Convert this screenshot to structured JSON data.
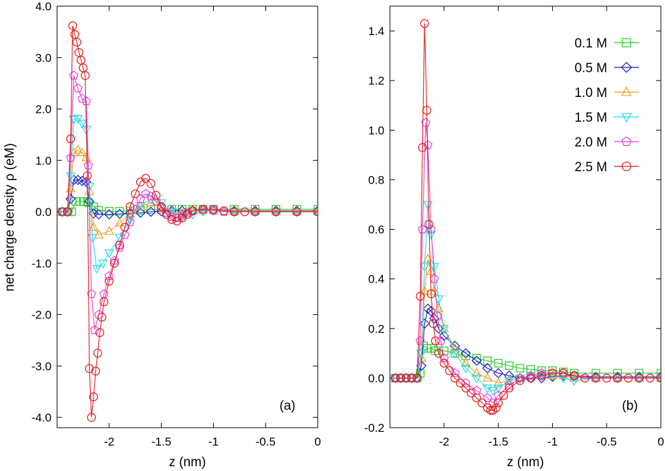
{
  "figure": {
    "ylabel": "net charge density ρ (eM)",
    "legend": {
      "placement": "top-right of panel (b)",
      "entries": [
        {
          "label": "0.1 M",
          "color": "#22cc22",
          "marker": "square"
        },
        {
          "label": "0.5 M",
          "color": "#1a1acc",
          "marker": "diamond"
        },
        {
          "label": "1.0 M",
          "color": "#f0a020",
          "marker": "triangle-up"
        },
        {
          "label": "1.5 M",
          "color": "#22dde6",
          "marker": "triangle-down"
        },
        {
          "label": "2.0 M",
          "color": "#e040e0",
          "marker": "pentagon"
        },
        {
          "label": "2.5 M",
          "color": "#e61a1a",
          "marker": "circle"
        }
      ]
    }
  },
  "chart_data": [
    {
      "type": "line",
      "panel_label": "(a)",
      "xlabel": "z (nm)",
      "ylabel": "net charge density ρ (eM)",
      "xlim": [
        -2.5,
        0
      ],
      "ylim": [
        -4.2,
        4.0
      ],
      "xticks": [
        -2,
        -1.5,
        -1,
        -0.5,
        0
      ],
      "xtick_labels": [
        "-2",
        "-1.5",
        "-1",
        "-0.5",
        "0"
      ],
      "yticks": [
        4,
        3,
        2,
        1,
        0,
        -1,
        -2,
        -3,
        -4
      ],
      "ytick_labels": [
        "4.0",
        "3.0",
        "2.0",
        "1.0",
        "0.0",
        "-1.0",
        "-2.0",
        "-3.0",
        "-4.0"
      ],
      "series": [
        {
          "name": "0.1 M",
          "x": [
            -2.45,
            -2.4,
            -2.36,
            -2.32,
            -2.28,
            -2.24,
            -2.2,
            -2.15,
            -2.1,
            -2.0,
            -1.9,
            -1.8,
            -1.7,
            -1.6,
            -1.5,
            -1.4,
            -1.3,
            -1.2,
            -1.1,
            -1.0,
            -0.8,
            -0.6,
            -0.4,
            -0.2,
            0.0
          ],
          "y": [
            0,
            0,
            0,
            0.2,
            0.2,
            0.2,
            0.18,
            0.1,
            0.03,
            0.01,
            0.01,
            0.02,
            0.03,
            0.04,
            0.05,
            0.05,
            0.05,
            0.05,
            0.05,
            0.05,
            0.05,
            0.05,
            0.05,
            0.05,
            0.05
          ]
        },
        {
          "name": "0.5 M",
          "x": [
            -2.45,
            -2.4,
            -2.37,
            -2.34,
            -2.3,
            -2.26,
            -2.22,
            -2.19,
            -2.15,
            -2.1,
            -2.0,
            -1.9,
            -1.8,
            -1.7,
            -1.6,
            -1.5,
            -1.4,
            -1.3,
            -1.2,
            -1.1,
            -1.0,
            -0.8,
            -0.6,
            -0.4,
            -0.2,
            0.0
          ],
          "y": [
            0,
            0,
            0.25,
            0.62,
            0.62,
            0.6,
            0.58,
            0.2,
            -0.03,
            -0.05,
            -0.05,
            -0.04,
            -0.03,
            -0.02,
            0,
            0.01,
            0.02,
            0.02,
            0.02,
            0.02,
            0.03,
            0.02,
            0.02,
            0.02,
            0.02,
            0.02
          ]
        },
        {
          "name": "1.0 M",
          "x": [
            -2.45,
            -2.4,
            -2.37,
            -2.34,
            -2.3,
            -2.26,
            -2.22,
            -2.19,
            -2.15,
            -2.1,
            -2.0,
            -1.9,
            -1.8,
            -1.7,
            -1.6,
            -1.5,
            -1.4,
            -1.3,
            -1.2,
            -1.1,
            -1.0,
            -0.8,
            -0.6,
            -0.4,
            -0.2,
            0.0
          ],
          "y": [
            0,
            0,
            0.45,
            1.15,
            1.2,
            1.15,
            1.05,
            0.4,
            -0.3,
            -0.45,
            -0.38,
            -0.22,
            -0.05,
            0.1,
            0.18,
            0.1,
            0,
            -0.03,
            0.01,
            0.03,
            0.03,
            0.01,
            0.01,
            0.01,
            0.01,
            0.01
          ]
        },
        {
          "name": "1.5 M",
          "x": [
            -2.45,
            -2.4,
            -2.37,
            -2.34,
            -2.3,
            -2.26,
            -2.22,
            -2.19,
            -2.16,
            -2.12,
            -2.06,
            -2.0,
            -1.9,
            -1.8,
            -1.7,
            -1.6,
            -1.5,
            -1.4,
            -1.3,
            -1.2,
            -1.1,
            -1.0,
            -0.8,
            -0.6,
            -0.4,
            -0.2,
            0.0
          ],
          "y": [
            0,
            0,
            0.7,
            1.8,
            1.82,
            1.72,
            1.6,
            0.5,
            -0.5,
            -1.1,
            -1.0,
            -0.8,
            -0.5,
            -0.15,
            0.12,
            0.25,
            0.18,
            0,
            -0.1,
            -0.05,
            0.01,
            0.02,
            0,
            0,
            0,
            0,
            0
          ]
        },
        {
          "name": "2.0 M",
          "x": [
            -2.45,
            -2.4,
            -2.37,
            -2.34,
            -2.3,
            -2.26,
            -2.22,
            -2.2,
            -2.17,
            -2.14,
            -2.1,
            -2.05,
            -2.0,
            -1.95,
            -1.9,
            -1.85,
            -1.8,
            -1.75,
            -1.7,
            -1.65,
            -1.6,
            -1.55,
            -1.5,
            -1.45,
            -1.4,
            -1.35,
            -1.3,
            -1.25,
            -1.2,
            -1.1,
            -1.0,
            -0.9,
            -0.8,
            -0.6,
            -0.4,
            -0.2,
            0.0
          ],
          "y": [
            0,
            0,
            1.05,
            2.65,
            2.4,
            2.2,
            2.15,
            0.9,
            -1.6,
            -2.3,
            -2.0,
            -1.6,
            -1.25,
            -0.95,
            -0.7,
            -0.45,
            -0.2,
            0.05,
            0.25,
            0.35,
            0.3,
            0.2,
            0.08,
            -0.02,
            -0.1,
            -0.12,
            -0.08,
            -0.02,
            0.02,
            0.04,
            0.02,
            0,
            0,
            0,
            0,
            0,
            0
          ]
        },
        {
          "name": "2.5 M",
          "x": [
            -2.45,
            -2.4,
            -2.37,
            -2.35,
            -2.33,
            -2.31,
            -2.29,
            -2.27,
            -2.25,
            -2.23,
            -2.21,
            -2.19,
            -2.17,
            -2.15,
            -2.13,
            -2.11,
            -2.09,
            -2.07,
            -2.05,
            -2.0,
            -1.95,
            -1.9,
            -1.85,
            -1.8,
            -1.75,
            -1.7,
            -1.65,
            -1.6,
            -1.55,
            -1.5,
            -1.45,
            -1.4,
            -1.35,
            -1.3,
            -1.25,
            -1.2,
            -1.1,
            -1.0,
            -0.9,
            -0.8,
            -0.7,
            -0.6,
            -0.4,
            -0.2,
            0.0
          ],
          "y": [
            0,
            0,
            1.42,
            3.62,
            3.45,
            3.3,
            3.1,
            2.95,
            2.8,
            2.65,
            0.7,
            -3.05,
            -4.0,
            -3.6,
            -3.1,
            -2.75,
            -2.35,
            -2.05,
            -1.75,
            -1.35,
            -1.0,
            -0.65,
            -0.3,
            0.1,
            0.35,
            0.58,
            0.65,
            0.55,
            0.32,
            0.1,
            -0.05,
            -0.15,
            -0.18,
            -0.12,
            -0.05,
            0.02,
            0.05,
            0.05,
            0.02,
            0,
            0,
            0,
            0,
            0,
            0
          ]
        }
      ]
    },
    {
      "type": "line",
      "panel_label": "(b)",
      "xlabel": "z (nm)",
      "ylabel": "",
      "xlim": [
        -2.5,
        0
      ],
      "ylim": [
        -0.2,
        1.5
      ],
      "xticks": [
        -2,
        -1.5,
        -1,
        -0.5,
        0
      ],
      "xtick_labels": [
        "-2",
        "-1.5",
        "-1",
        "-0.5",
        "0"
      ],
      "yticks": [
        1.4,
        1.2,
        1.0,
        0.8,
        0.6,
        0.4,
        0.2,
        0.0,
        -0.2
      ],
      "ytick_labels": [
        "1.4",
        "1.2",
        "1.0",
        "0.8",
        "0.6",
        "0.4",
        "0.2",
        "0.0",
        "-0.2"
      ],
      "series": [
        {
          "name": "0.1 M",
          "x": [
            -2.45,
            -2.4,
            -2.35,
            -2.3,
            -2.25,
            -2.22,
            -2.19,
            -2.16,
            -2.12,
            -2.08,
            -2.0,
            -1.9,
            -1.8,
            -1.7,
            -1.6,
            -1.5,
            -1.4,
            -1.3,
            -1.2,
            -1.1,
            -1.0,
            -0.9,
            -0.8,
            -0.6,
            -0.4,
            -0.2,
            0.0
          ],
          "y": [
            0,
            0,
            0,
            0,
            0,
            0.02,
            0.13,
            0.12,
            0.12,
            0.11,
            0.11,
            0.1,
            0.09,
            0.08,
            0.07,
            0.06,
            0.05,
            0.04,
            0.035,
            0.03,
            0.03,
            0.025,
            0.02,
            0.02,
            0.02,
            0.02,
            0.02
          ]
        },
        {
          "name": "0.5 M",
          "x": [
            -2.45,
            -2.4,
            -2.35,
            -2.3,
            -2.25,
            -2.21,
            -2.18,
            -2.15,
            -2.12,
            -2.09,
            -2.05,
            -2.0,
            -1.9,
            -1.8,
            -1.7,
            -1.6,
            -1.5,
            -1.4,
            -1.3,
            -1.2,
            -1.1,
            -1.0,
            -0.9,
            -0.8,
            -0.6,
            -0.4,
            -0.2,
            0.0
          ],
          "y": [
            0,
            0,
            0,
            0,
            0,
            0.05,
            0.22,
            0.28,
            0.27,
            0.24,
            0.2,
            0.17,
            0.13,
            0.1,
            0.07,
            0.04,
            0.02,
            0.01,
            0.0,
            0.0,
            0.0,
            0.005,
            0.01,
            0.01,
            0.005,
            0.005,
            0.005,
            0.005
          ]
        },
        {
          "name": "1.0 M",
          "x": [
            -2.45,
            -2.4,
            -2.35,
            -2.3,
            -2.25,
            -2.21,
            -2.18,
            -2.15,
            -2.12,
            -2.09,
            -2.05,
            -2.0,
            -1.9,
            -1.8,
            -1.7,
            -1.6,
            -1.5,
            -1.4,
            -1.3,
            -1.2,
            -1.1,
            -1.0,
            -0.9,
            -0.8,
            -0.6,
            -0.4,
            -0.2,
            0.0
          ],
          "y": [
            0,
            0,
            0,
            0,
            0,
            0.08,
            0.35,
            0.48,
            0.43,
            0.35,
            0.28,
            0.2,
            0.12,
            0.06,
            0.02,
            0.0,
            -0.02,
            -0.01,
            0.0,
            0.01,
            0.01,
            0.01,
            0.01,
            0.0,
            0.0,
            0.0,
            0.0,
            0.0
          ]
        },
        {
          "name": "1.5 M",
          "x": [
            -2.45,
            -2.4,
            -2.35,
            -2.3,
            -2.25,
            -2.21,
            -2.18,
            -2.15,
            -2.12,
            -2.09,
            -2.05,
            -2.0,
            -1.9,
            -1.8,
            -1.7,
            -1.6,
            -1.55,
            -1.5,
            -1.4,
            -1.3,
            -1.2,
            -1.1,
            -1.0,
            -0.9,
            -0.8,
            -0.6,
            -0.4,
            -0.2,
            0.0
          ],
          "y": [
            0,
            0,
            0,
            0,
            0,
            0.1,
            0.45,
            0.7,
            0.58,
            0.45,
            0.32,
            0.2,
            0.1,
            0.04,
            0.0,
            -0.04,
            -0.05,
            -0.04,
            -0.01,
            0.0,
            0.01,
            0.01,
            0.01,
            0.0,
            -0.01,
            0.0,
            0.0,
            0.0,
            0.0
          ]
        },
        {
          "name": "2.0 M",
          "x": [
            -2.45,
            -2.4,
            -2.35,
            -2.3,
            -2.25,
            -2.22,
            -2.2,
            -2.17,
            -2.15,
            -2.12,
            -2.09,
            -2.06,
            -2.03,
            -2.0,
            -1.9,
            -1.8,
            -1.7,
            -1.6,
            -1.55,
            -1.5,
            -1.4,
            -1.3,
            -1.2,
            -1.1,
            -1.0,
            -0.9,
            -0.8,
            -0.6,
            -0.4,
            -0.2,
            0.0
          ],
          "y": [
            0,
            0,
            0,
            0,
            0,
            0.15,
            0.6,
            1.03,
            0.94,
            0.6,
            0.4,
            0.25,
            0.15,
            0.08,
            0.02,
            -0.02,
            -0.05,
            -0.08,
            -0.1,
            -0.07,
            -0.03,
            0.0,
            0.01,
            0.02,
            0.02,
            0.02,
            0.01,
            0.0,
            0.0,
            0.0,
            0.0
          ]
        },
        {
          "name": "2.5 M",
          "x": [
            -2.45,
            -2.4,
            -2.35,
            -2.3,
            -2.25,
            -2.22,
            -2.2,
            -2.18,
            -2.16,
            -2.14,
            -2.12,
            -2.1,
            -2.08,
            -2.05,
            -2.0,
            -1.95,
            -1.9,
            -1.85,
            -1.8,
            -1.75,
            -1.7,
            -1.65,
            -1.6,
            -1.57,
            -1.55,
            -1.52,
            -1.5,
            -1.45,
            -1.4,
            -1.3,
            -1.2,
            -1.1,
            -1.0,
            -0.9,
            -0.8,
            -0.7,
            -0.6,
            -0.5,
            -0.4,
            -0.3,
            -0.2,
            -0.1,
            0.0
          ],
          "y": [
            0,
            0,
            0,
            0,
            0,
            0.33,
            0.93,
            1.43,
            1.08,
            0.62,
            0.34,
            0.22,
            0.15,
            0.1,
            0.06,
            0.03,
            0.0,
            -0.02,
            -0.04,
            -0.06,
            -0.08,
            -0.1,
            -0.12,
            -0.13,
            -0.13,
            -0.12,
            -0.1,
            -0.07,
            -0.04,
            -0.01,
            0.0,
            0.01,
            0.02,
            0.02,
            0.01,
            0.0,
            0.0,
            0.0,
            0.0,
            0.0,
            0.0,
            0.0,
            0.0
          ]
        }
      ]
    }
  ]
}
